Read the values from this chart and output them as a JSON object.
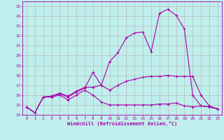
{
  "xlabel": "Windchill (Refroidissement éolien,°C)",
  "bg_color": "#c0eeec",
  "line_color": "#aa00aa",
  "grid_color": "#b0b0b0",
  "xlim": [
    -0.5,
    23.5
  ],
  "ylim": [
    14.0,
    25.5
  ],
  "yticks": [
    14,
    15,
    16,
    17,
    18,
    19,
    20,
    21,
    22,
    23,
    24,
    25
  ],
  "xticks": [
    0,
    1,
    2,
    3,
    4,
    5,
    6,
    7,
    8,
    9,
    10,
    11,
    12,
    13,
    14,
    15,
    16,
    17,
    18,
    19,
    20,
    21,
    22,
    23
  ],
  "line1_x": [
    0,
    1,
    2,
    3,
    4,
    5,
    6,
    7,
    8,
    9,
    10,
    11,
    12,
    13,
    14,
    15,
    16,
    17,
    18,
    19,
    20,
    21,
    22,
    23
  ],
  "line1_y": [
    14.8,
    14.2,
    15.8,
    15.8,
    16.0,
    15.5,
    16.0,
    16.5,
    16.0,
    15.3,
    15.0,
    15.0,
    15.0,
    15.0,
    15.0,
    15.0,
    15.1,
    15.1,
    15.2,
    14.9,
    14.8,
    14.9,
    14.8,
    14.6
  ],
  "line2_x": [
    0,
    1,
    2,
    3,
    4,
    5,
    6,
    7,
    8,
    9,
    10,
    11,
    12,
    13,
    14,
    15,
    16,
    17,
    18,
    19,
    20,
    21,
    22,
    23
  ],
  "line2_y": [
    14.8,
    14.2,
    15.8,
    15.9,
    16.1,
    15.8,
    16.3,
    16.7,
    18.3,
    17.0,
    19.4,
    20.3,
    21.8,
    22.3,
    22.4,
    20.4,
    24.3,
    24.7,
    24.1,
    22.7,
    16.0,
    14.9,
    14.8,
    14.6
  ],
  "line3_x": [
    0,
    1,
    2,
    3,
    4,
    5,
    6,
    7,
    8,
    9,
    10,
    11,
    12,
    13,
    14,
    15,
    16,
    17,
    18,
    19,
    20,
    21,
    22,
    23
  ],
  "line3_y": [
    14.8,
    14.2,
    15.8,
    15.9,
    16.2,
    15.9,
    16.4,
    16.8,
    16.8,
    17.0,
    16.5,
    17.0,
    17.4,
    17.6,
    17.8,
    17.9,
    17.9,
    18.0,
    17.9,
    17.9,
    17.9,
    16.0,
    14.9,
    14.6
  ]
}
